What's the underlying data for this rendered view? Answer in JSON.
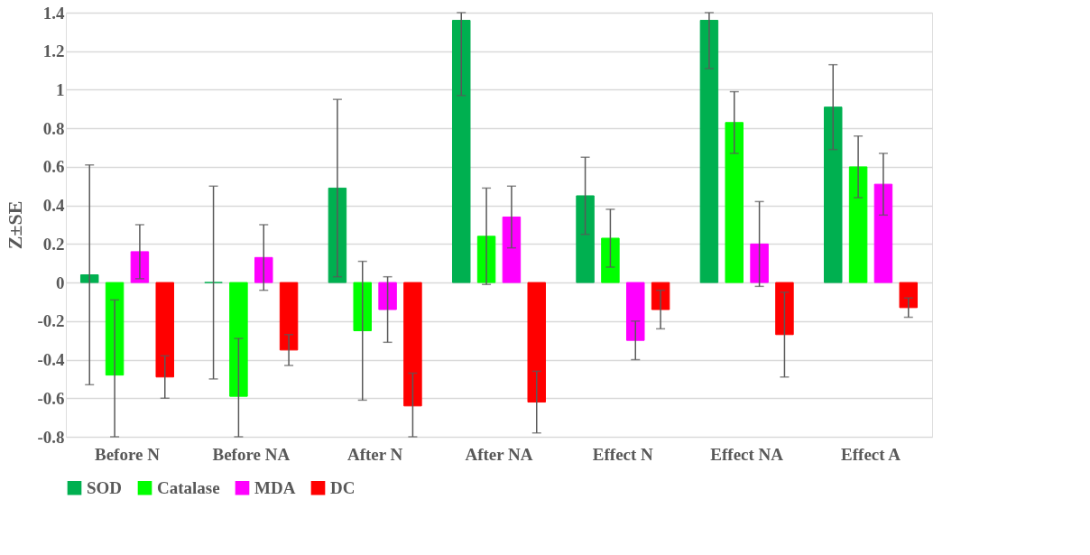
{
  "chart_data": {
    "type": "bar",
    "ylabel": "Z±SE",
    "categories": [
      "Before N",
      "Before NA",
      "After N",
      "After NA",
      "Effect N",
      "Effect NA",
      "Effect A"
    ],
    "series": [
      {
        "name": "SOD",
        "color": "#00b050",
        "values": [
          0.04,
          0,
          0.49,
          1.36,
          0.45,
          1.36,
          0.91
        ],
        "errors": [
          [
            -0.53,
            0.61
          ],
          [
            -0.5,
            0.5
          ],
          [
            0.03,
            0.95
          ],
          [
            0.97,
            1.4
          ],
          [
            0.25,
            0.65
          ],
          [
            1.11,
            1.4
          ],
          [
            0.69,
            1.13
          ]
        ]
      },
      {
        "name": "Catalase",
        "color": "#00ff00",
        "values": [
          -0.48,
          -0.59,
          -0.25,
          0.24,
          0.23,
          0.83,
          0.6
        ],
        "errors": [
          [
            -0.8,
            -0.09
          ],
          [
            -0.8,
            -0.29
          ],
          [
            -0.61,
            0.11
          ],
          [
            -0.01,
            0.49
          ],
          [
            0.08,
            0.38
          ],
          [
            0.67,
            0.99
          ],
          [
            0.44,
            0.76
          ]
        ]
      },
      {
        "name": "MDA",
        "color": "#ff00ff",
        "values": [
          0.16,
          0.13,
          -0.14,
          0.34,
          -0.3,
          0.2,
          0.51
        ],
        "errors": [
          [
            0.02,
            0.3
          ],
          [
            -0.04,
            0.3
          ],
          [
            -0.31,
            0.03
          ],
          [
            0.18,
            0.5
          ],
          [
            -0.4,
            -0.2
          ],
          [
            -0.02,
            0.42
          ],
          [
            0.35,
            0.67
          ]
        ]
      },
      {
        "name": "DC",
        "color": "#ff0000",
        "values": [
          -0.49,
          -0.35,
          -0.64,
          -0.62,
          -0.14,
          -0.27,
          -0.13
        ],
        "errors": [
          [
            -0.6,
            -0.38
          ],
          [
            -0.43,
            -0.27
          ],
          [
            -0.8,
            -0.47
          ],
          [
            -0.78,
            -0.46
          ],
          [
            -0.24,
            -0.04
          ],
          [
            -0.49,
            -0.05
          ],
          [
            -0.18,
            -0.08
          ]
        ]
      }
    ],
    "ylim": [
      -0.8,
      1.4
    ],
    "yticks": [
      -0.8,
      -0.6,
      -0.4,
      -0.2,
      0,
      0.2,
      0.4,
      0.6,
      0.8,
      1,
      1.2,
      1.4
    ],
    "grid": "y",
    "legend": "bottom"
  }
}
